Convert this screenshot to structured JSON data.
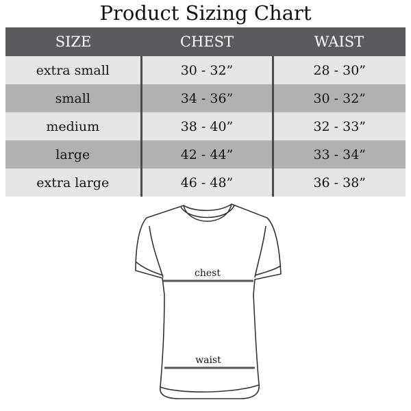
{
  "title": "Product Sizing Chart",
  "table": {
    "headers": [
      "SIZE",
      "CHEST",
      "WAIST"
    ],
    "rows": [
      [
        "extra small",
        "30 - 32”",
        "28 - 30”"
      ],
      [
        "small",
        "34 - 36”",
        "30 - 32”"
      ],
      [
        "medium",
        "38 - 40”",
        "32 - 33”"
      ],
      [
        "large",
        "42 - 44”",
        "33 - 34”"
      ],
      [
        "extra large",
        "46 - 48”",
        "36 - 38”"
      ]
    ]
  },
  "diagram": {
    "chest_label": "chest",
    "waist_label": "waist"
  },
  "colors": {
    "header": "#5b5b5f",
    "row_light": "#e5e5e7",
    "row_dark": "#b1b1b3"
  }
}
